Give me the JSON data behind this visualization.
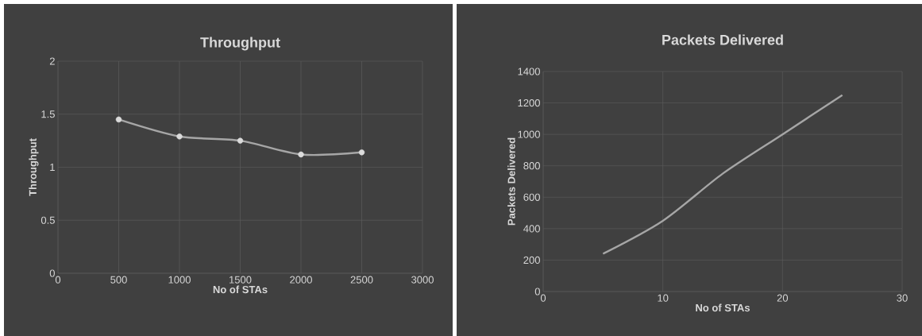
{
  "chart_data": [
    {
      "type": "line",
      "title": "Throughput",
      "xlabel": "No of STAs",
      "ylabel": "Throughput",
      "x": [
        500,
        1000,
        1500,
        2000,
        2500
      ],
      "series": [
        {
          "color": "#a6a6a6",
          "values": [
            1.45,
            1.29,
            1.25,
            1.12,
            1.14
          ]
        }
      ],
      "xlim": [
        0,
        3000
      ],
      "xticks": [
        0,
        500,
        1000,
        1500,
        2000,
        2500,
        3000
      ],
      "ylim": [
        0,
        2
      ],
      "yticks": [
        0,
        0.5,
        1,
        1.5,
        2
      ],
      "grid": true,
      "marker": "circle"
    },
    {
      "type": "line",
      "title": "Packets Delivered",
      "xlabel": "No of STAs",
      "ylabel": "Packets Delivered",
      "x": [
        5,
        10,
        15,
        20,
        25
      ],
      "series": [
        {
          "color": "#a6a6a6",
          "values": [
            240,
            450,
            750,
            1000,
            1250
          ]
        }
      ],
      "xlim": [
        0,
        30
      ],
      "xticks": [
        0,
        10,
        20,
        30
      ],
      "ylim": [
        0,
        1400
      ],
      "yticks": [
        0,
        200,
        400,
        600,
        800,
        1000,
        1200,
        1400
      ],
      "grid": true,
      "marker": "none"
    }
  ]
}
